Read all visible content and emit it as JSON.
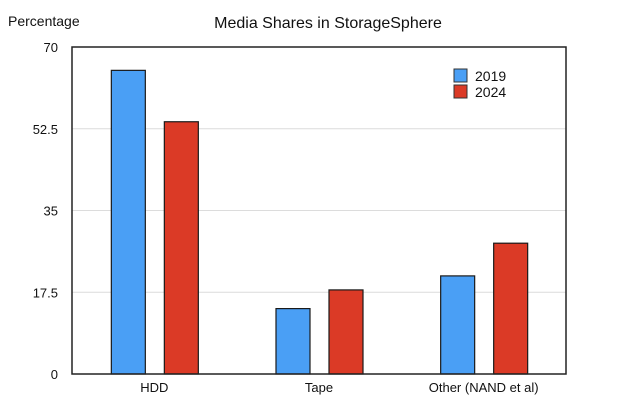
{
  "chart_data": {
    "type": "bar",
    "title": "Media Shares in StorageSphere",
    "ylabel": "Percentage",
    "xlabel": "",
    "categories": [
      "HDD",
      "Tape",
      "Other (NAND et al)"
    ],
    "series": [
      {
        "name": "2019",
        "values": [
          65,
          14,
          21
        ],
        "color": "#4a9ff5"
      },
      {
        "name": "2024",
        "values": [
          54,
          18,
          28
        ],
        "color": "#db3a26"
      }
    ],
    "ylim": [
      0,
      70
    ],
    "yticks": [
      0,
      17.5,
      35,
      52.5,
      70
    ],
    "ytick_labels": [
      "0",
      "17.5",
      "35",
      "52.5",
      "70"
    ],
    "grid": true,
    "legend_position": "top-right"
  }
}
